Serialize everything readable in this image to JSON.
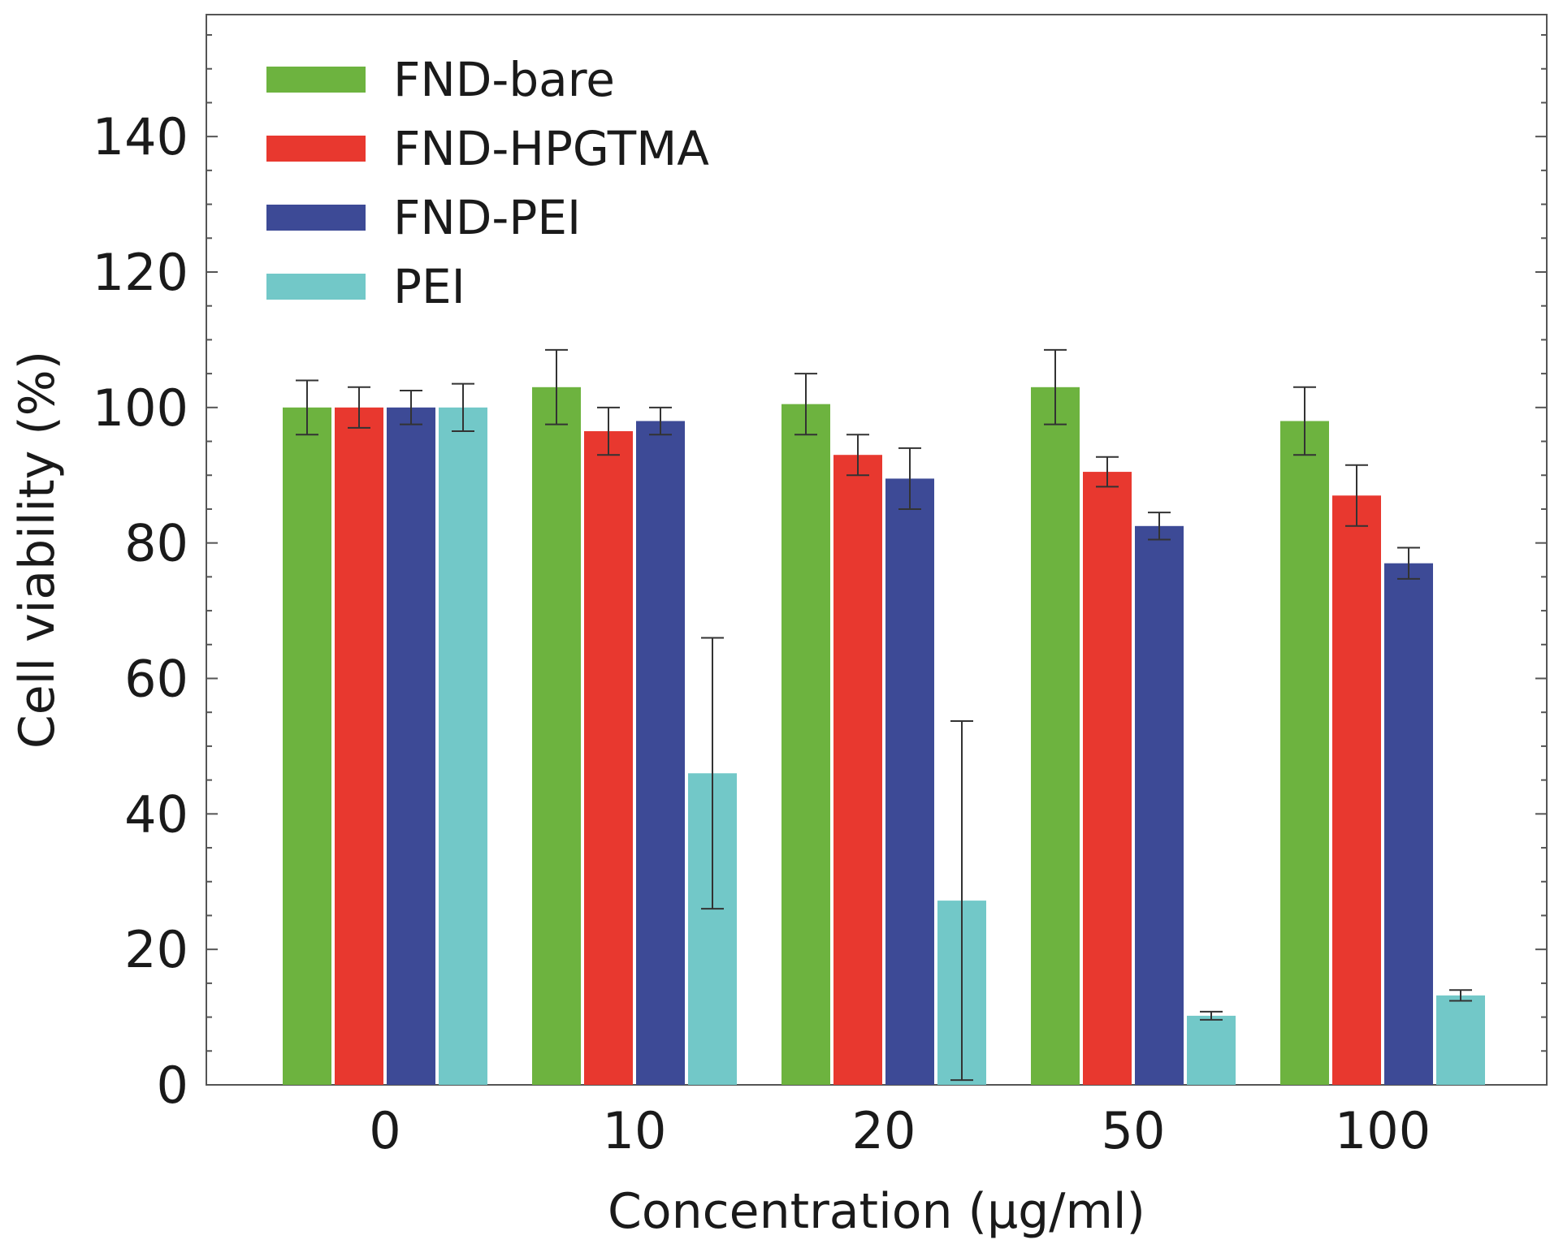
{
  "chart_data": {
    "type": "bar",
    "title": "",
    "xlabel": "Concentration (µg/ml)",
    "ylabel": "Cell viability (%)",
    "ylim": [
      0,
      158
    ],
    "yticks": [
      0,
      20,
      40,
      60,
      80,
      100,
      120,
      140
    ],
    "categories": [
      "0",
      "10",
      "20",
      "50",
      "100"
    ],
    "legend_position": "top-left",
    "series": [
      {
        "name": "FND-bare",
        "color": "#6db33f",
        "values": [
          100,
          103,
          100.5,
          103,
          98
        ],
        "errors": [
          4,
          5.5,
          4.5,
          5.5,
          5
        ]
      },
      {
        "name": "FND-HPGTMA",
        "color": "#e8382f",
        "values": [
          100,
          96.5,
          93,
          90.5,
          87
        ],
        "errors": [
          3,
          3.5,
          3,
          2.2,
          4.5
        ]
      },
      {
        "name": "FND-PEI",
        "color": "#3d4a96",
        "values": [
          100,
          98,
          89.5,
          82.5,
          77
        ],
        "errors": [
          2.5,
          2,
          4.5,
          2,
          2.3
        ]
      },
      {
        "name": "PEI",
        "color": "#72c8c8",
        "values": [
          100,
          46,
          27.2,
          10.2,
          13.2
        ],
        "errors": [
          3.5,
          20,
          26.5,
          0.6,
          0.8
        ]
      }
    ]
  }
}
